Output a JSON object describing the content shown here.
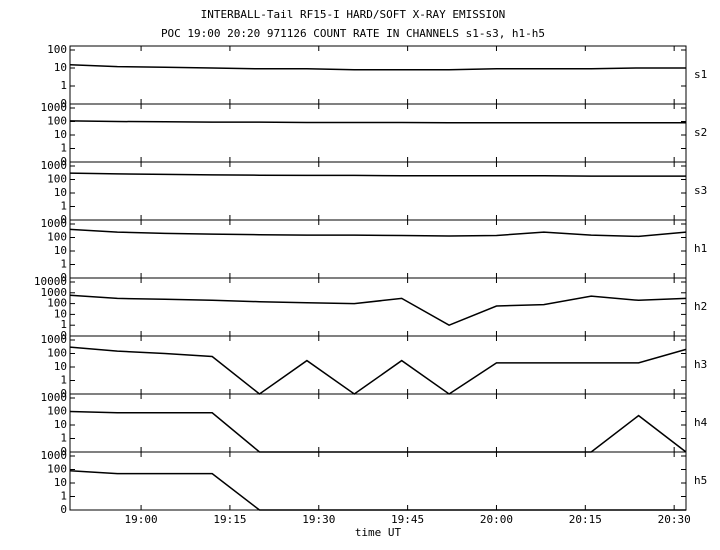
{
  "header": {
    "title": "INTERBALL-Tail RF15-I HARD/SOFT X-RAY EMISSION",
    "subtitle": "POC 19:00 20:20 971126  COUNT RATE IN CHANNELS s1-s3, h1-h5"
  },
  "chart_data": [
    {
      "type": "line",
      "name": "s1",
      "color": "#000000",
      "yscale": "symlog",
      "xlim": [
        1128,
        1232
      ],
      "ylim": [
        0,
        100
      ],
      "yticks": [
        0,
        1,
        10,
        100
      ],
      "x": [
        1128,
        1136,
        1144,
        1152,
        1160,
        1168,
        1176,
        1184,
        1192,
        1200,
        1208,
        1216,
        1224,
        1232
      ],
      "values": [
        15,
        12,
        11,
        10,
        9,
        9,
        8,
        8,
        8,
        9,
        9,
        9,
        10,
        10
      ]
    },
    {
      "type": "line",
      "name": "s2",
      "color": "#000000",
      "yscale": "symlog",
      "xlim": [
        1128,
        1232
      ],
      "ylim": [
        0,
        1000
      ],
      "yticks": [
        0,
        1,
        10,
        100,
        1000
      ],
      "x": [
        1128,
        1136,
        1144,
        1152,
        1160,
        1168,
        1176,
        1184,
        1192,
        1200,
        1208,
        1216,
        1224,
        1232
      ],
      "values": [
        110,
        100,
        95,
        90,
        90,
        85,
        85,
        85,
        80,
        80,
        80,
        80,
        80,
        80
      ]
    },
    {
      "type": "line",
      "name": "s3",
      "color": "#000000",
      "yscale": "symlog",
      "xlim": [
        1128,
        1232
      ],
      "ylim": [
        0,
        1000
      ],
      "yticks": [
        0,
        1,
        10,
        100,
        1000
      ],
      "x": [
        1128,
        1136,
        1144,
        1152,
        1160,
        1168,
        1176,
        1184,
        1192,
        1200,
        1208,
        1216,
        1224,
        1232
      ],
      "values": [
        300,
        260,
        240,
        220,
        210,
        200,
        200,
        190,
        190,
        190,
        190,
        180,
        180,
        180
      ]
    },
    {
      "type": "line",
      "name": "h1",
      "color": "#000000",
      "yscale": "symlog",
      "xlim": [
        1128,
        1232
      ],
      "ylim": [
        0,
        1000
      ],
      "yticks": [
        0,
        1,
        10,
        100,
        1000
      ],
      "x": [
        1128,
        1136,
        1144,
        1152,
        1160,
        1168,
        1176,
        1184,
        1192,
        1200,
        1208,
        1216,
        1224,
        1232
      ],
      "values": [
        400,
        250,
        200,
        180,
        160,
        150,
        150,
        140,
        130,
        140,
        250,
        150,
        120,
        250
      ]
    },
    {
      "type": "line",
      "name": "h2",
      "color": "#000000",
      "yscale": "symlog",
      "xlim": [
        1128,
        1232
      ],
      "ylim": [
        0,
        10000
      ],
      "yticks": [
        0,
        1,
        10,
        100,
        1000,
        10000
      ],
      "x": [
        1128,
        1136,
        1144,
        1152,
        1160,
        1168,
        1176,
        1184,
        1192,
        1200,
        1208,
        1216,
        1224,
        1232
      ],
      "values": [
        600,
        300,
        250,
        200,
        150,
        120,
        100,
        300,
        1,
        60,
        80,
        500,
        200,
        300
      ]
    },
    {
      "type": "line",
      "name": "h3",
      "color": "#000000",
      "yscale": "symlog",
      "xlim": [
        1128,
        1232
      ],
      "ylim": [
        0,
        1000
      ],
      "yticks": [
        0,
        1,
        10,
        100,
        1000
      ],
      "x": [
        1128,
        1136,
        1144,
        1152,
        1160,
        1168,
        1176,
        1184,
        1192,
        1200,
        1208,
        1216,
        1224,
        1232
      ],
      "values": [
        300,
        150,
        100,
        60,
        0,
        30,
        0,
        30,
        0,
        20,
        20,
        20,
        20,
        200
      ]
    },
    {
      "type": "line",
      "name": "h4",
      "color": "#000000",
      "yscale": "symlog",
      "xlim": [
        1128,
        1232
      ],
      "ylim": [
        0,
        1000
      ],
      "yticks": [
        0,
        1,
        10,
        100,
        1000
      ],
      "x": [
        1128,
        1136,
        1144,
        1152,
        1160,
        1168,
        1176,
        1184,
        1192,
        1200,
        1208,
        1216,
        1224,
        1232
      ],
      "values": [
        100,
        80,
        80,
        80,
        0,
        0,
        0,
        0,
        0,
        0,
        0,
        0,
        50,
        0
      ]
    },
    {
      "type": "line",
      "name": "h5",
      "color": "#000000",
      "yscale": "symlog",
      "xlim": [
        1128,
        1232
      ],
      "ylim": [
        0,
        1000
      ],
      "yticks": [
        0,
        1,
        10,
        100,
        1000
      ],
      "x": [
        1128,
        1136,
        1144,
        1152,
        1160,
        1168,
        1176,
        1184,
        1192,
        1200,
        1208,
        1216,
        1224,
        1232
      ],
      "values": [
        80,
        50,
        50,
        50,
        0,
        0,
        0,
        0,
        0,
        0,
        0,
        0,
        0,
        0
      ],
      "xlabel": "time UT",
      "xticks": [
        {
          "value": 1140,
          "label": "19:00"
        },
        {
          "value": 1155,
          "label": "19:15"
        },
        {
          "value": 1170,
          "label": "19:30"
        },
        {
          "value": 1185,
          "label": "19:45"
        },
        {
          "value": 1200,
          "label": "20:00"
        },
        {
          "value": 1215,
          "label": "20:15"
        },
        {
          "value": 1230,
          "label": "20:30"
        }
      ]
    }
  ]
}
